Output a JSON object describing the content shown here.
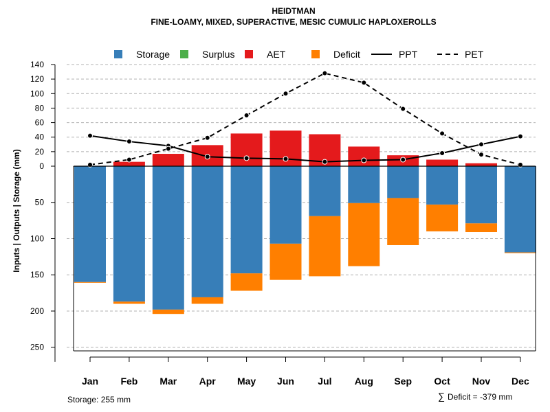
{
  "chart_data": {
    "type": "bar",
    "title": "HEIDTMAN",
    "subtitle": "FINE-LOAMY, MIXED, SUPERACTIVE, MESIC CUMULIC HAPLOXEROLLS",
    "ylabel": "Inputs | Outputs | Storage    (mm)",
    "categories": [
      "Jan",
      "Feb",
      "Mar",
      "Apr",
      "May",
      "Jun",
      "Jul",
      "Aug",
      "Sep",
      "Oct",
      "Nov",
      "Dec"
    ],
    "upper_axis": {
      "ylim": [
        0,
        140
      ],
      "ticks": [
        "0",
        "20",
        "40",
        "60",
        "80",
        "100",
        "120",
        "140"
      ]
    },
    "lower_axis": {
      "ylim": [
        0,
        255
      ],
      "ticks": [
        "50",
        "100",
        "150",
        "200",
        "250"
      ]
    },
    "legend": {
      "placement": "top",
      "items": [
        {
          "key": "storage",
          "label": "Storage",
          "kind": "box",
          "color": "#377EB8"
        },
        {
          "key": "surplus",
          "label": "Surplus",
          "kind": "box",
          "color": "#4DAF4A"
        },
        {
          "key": "aet",
          "label": "AET",
          "kind": "box",
          "color": "#E41A1C"
        },
        {
          "key": "deficit",
          "label": "Deficit",
          "kind": "box",
          "color": "#FF7F00"
        },
        {
          "key": "ppt",
          "label": "PPT",
          "kind": "solid-line",
          "color": "#000000"
        },
        {
          "key": "pet",
          "label": "PET",
          "kind": "dashed-line",
          "color": "#000000"
        }
      ]
    },
    "series": [
      {
        "name": "AET",
        "color": "#E41A1C",
        "values": [
          0,
          6,
          17,
          29,
          45,
          49,
          44,
          27,
          15,
          9,
          4,
          0
        ]
      },
      {
        "name": "Surplus",
        "color": "#4DAF4A",
        "values": [
          0,
          0,
          0,
          0,
          0,
          0,
          0,
          0,
          0,
          0,
          0,
          0
        ]
      },
      {
        "name": "Storage",
        "color": "#377EB8",
        "values": [
          160,
          187,
          198,
          181,
          148,
          107,
          69,
          51,
          44,
          53,
          79,
          119
        ]
      },
      {
        "name": "Deficit",
        "color": "#FF7F00",
        "values": [
          -1,
          -3,
          -6,
          -9,
          -24,
          -50,
          -83,
          -87,
          -65,
          -37,
          -12,
          -1
        ]
      },
      {
        "name": "PPT",
        "color": "#000000",
        "values": [
          42,
          34,
          28,
          13,
          11,
          10,
          6,
          8,
          9,
          18,
          30,
          41
        ]
      },
      {
        "name": "PET",
        "color": "#000000",
        "values": [
          2,
          9,
          24,
          39,
          70,
          100,
          128,
          115,
          79,
          45,
          16,
          2
        ]
      }
    ],
    "footer": {
      "storage_text": "Storage: 255 mm",
      "sum_symbol": "∑",
      "deficit_text": "Deficit = -379 mm"
    }
  }
}
